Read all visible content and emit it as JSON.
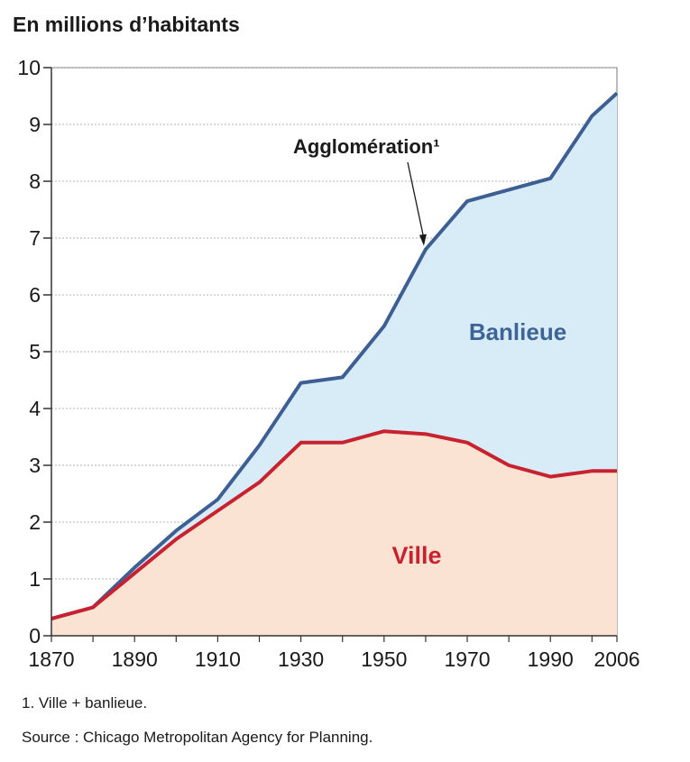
{
  "chart_data": {
    "type": "area",
    "ylabel": "En millions d’habitants",
    "ylim": [
      0,
      10
    ],
    "xlim": [
      1870,
      2006
    ],
    "y_ticks": [
      "0",
      "1",
      "2",
      "3",
      "4",
      "5",
      "6",
      "7",
      "8",
      "9",
      "10"
    ],
    "x_ticks": [
      "1870",
      "1890",
      "1910",
      "1930",
      "1950",
      "1970",
      "1990",
      "2006"
    ],
    "grid": true,
    "series": [
      {
        "name": "Agglomération¹",
        "color": "#3d5f94",
        "fill": "#d8ecf8",
        "points": [
          [
            1870,
            0.3
          ],
          [
            1880,
            0.5
          ],
          [
            1890,
            1.2
          ],
          [
            1900,
            1.85
          ],
          [
            1910,
            2.4
          ],
          [
            1920,
            3.35
          ],
          [
            1930,
            4.45
          ],
          [
            1940,
            4.55
          ],
          [
            1950,
            5.45
          ],
          [
            1960,
            6.8
          ],
          [
            1970,
            7.65
          ],
          [
            1980,
            7.85
          ],
          [
            1990,
            8.05
          ],
          [
            2000,
            9.15
          ],
          [
            2006,
            9.55
          ]
        ]
      },
      {
        "name": "Ville",
        "color": "#c8212f",
        "fill": "#fbe3d3",
        "points": [
          [
            1870,
            0.3
          ],
          [
            1880,
            0.5
          ],
          [
            1890,
            1.1
          ],
          [
            1900,
            1.7
          ],
          [
            1910,
            2.2
          ],
          [
            1920,
            2.7
          ],
          [
            1930,
            3.4
          ],
          [
            1940,
            3.4
          ],
          [
            1950,
            3.6
          ],
          [
            1960,
            3.55
          ],
          [
            1970,
            3.4
          ],
          [
            1980,
            3.0
          ],
          [
            1990,
            2.8
          ],
          [
            2000,
            2.9
          ],
          [
            2006,
            2.9
          ]
        ]
      }
    ],
    "annotations": {
      "agglo_label": "Agglomération¹",
      "agglo_arrow_target": [
        1960,
        6.8
      ],
      "banlieue_label": "Banlieue",
      "ville_label": "Ville"
    }
  },
  "footnote": "1. Ville + banlieue.",
  "source": "Source : Chicago Metropolitan Agency for Planning."
}
